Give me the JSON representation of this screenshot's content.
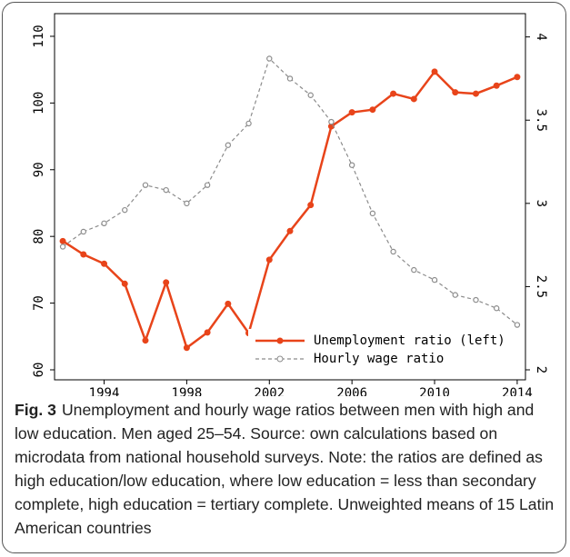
{
  "chart_data": {
    "type": "line",
    "x": [
      1992,
      1993,
      1994,
      1995,
      1996,
      1997,
      1998,
      1999,
      2000,
      2001,
      2002,
      2003,
      2004,
      2005,
      2006,
      2007,
      2008,
      2009,
      2010,
      2011,
      2012,
      2013,
      2014
    ],
    "series": [
      {
        "name": "Unemployment ratio (left)",
        "color": "#e8441a",
        "axis": "y",
        "values": [
          79.3,
          77.3,
          75.9,
          72.9,
          64.4,
          73.1,
          63.3,
          65.6,
          69.9,
          65.5,
          76.5,
          80.8,
          84.7,
          96.5,
          98.6,
          99.0,
          101.4,
          100.6,
          104.7,
          101.6,
          101.4,
          102.6,
          103.9
        ]
      },
      {
        "name": "Hourly wage ratio",
        "color": "#8c8c8c",
        "axis": "y2",
        "values": [
          2.74,
          2.83,
          2.88,
          2.96,
          3.11,
          3.08,
          3.0,
          3.11,
          3.35,
          3.48,
          3.87,
          3.75,
          3.65,
          3.49,
          3.23,
          2.94,
          2.71,
          2.6,
          2.54,
          2.45,
          2.42,
          2.37,
          2.27
        ]
      }
    ],
    "xlim": [
      1991.6,
      2014.4
    ],
    "xticks": [
      1994,
      1998,
      2002,
      2006,
      2010,
      2014
    ],
    "ylim": [
      58.5,
      113.4
    ],
    "yticks": [
      60,
      70,
      80,
      90,
      100,
      110
    ],
    "y2lim": [
      1.94,
      4.14
    ],
    "y2ticks": [
      2,
      2.5,
      3,
      3.5,
      4
    ],
    "legend": "lower right",
    "caption_label": "Fig. 3",
    "caption": "Unemployment and hourly wage ratios between men with high and low education. Men aged 25–54. Source: own calculations based on microdata from national household surveys. Note: the ratios are defined as high education/low education, where low education = less than secondary complete, high education = tertiary complete. Unweighted means of 15 Latin American countries"
  }
}
